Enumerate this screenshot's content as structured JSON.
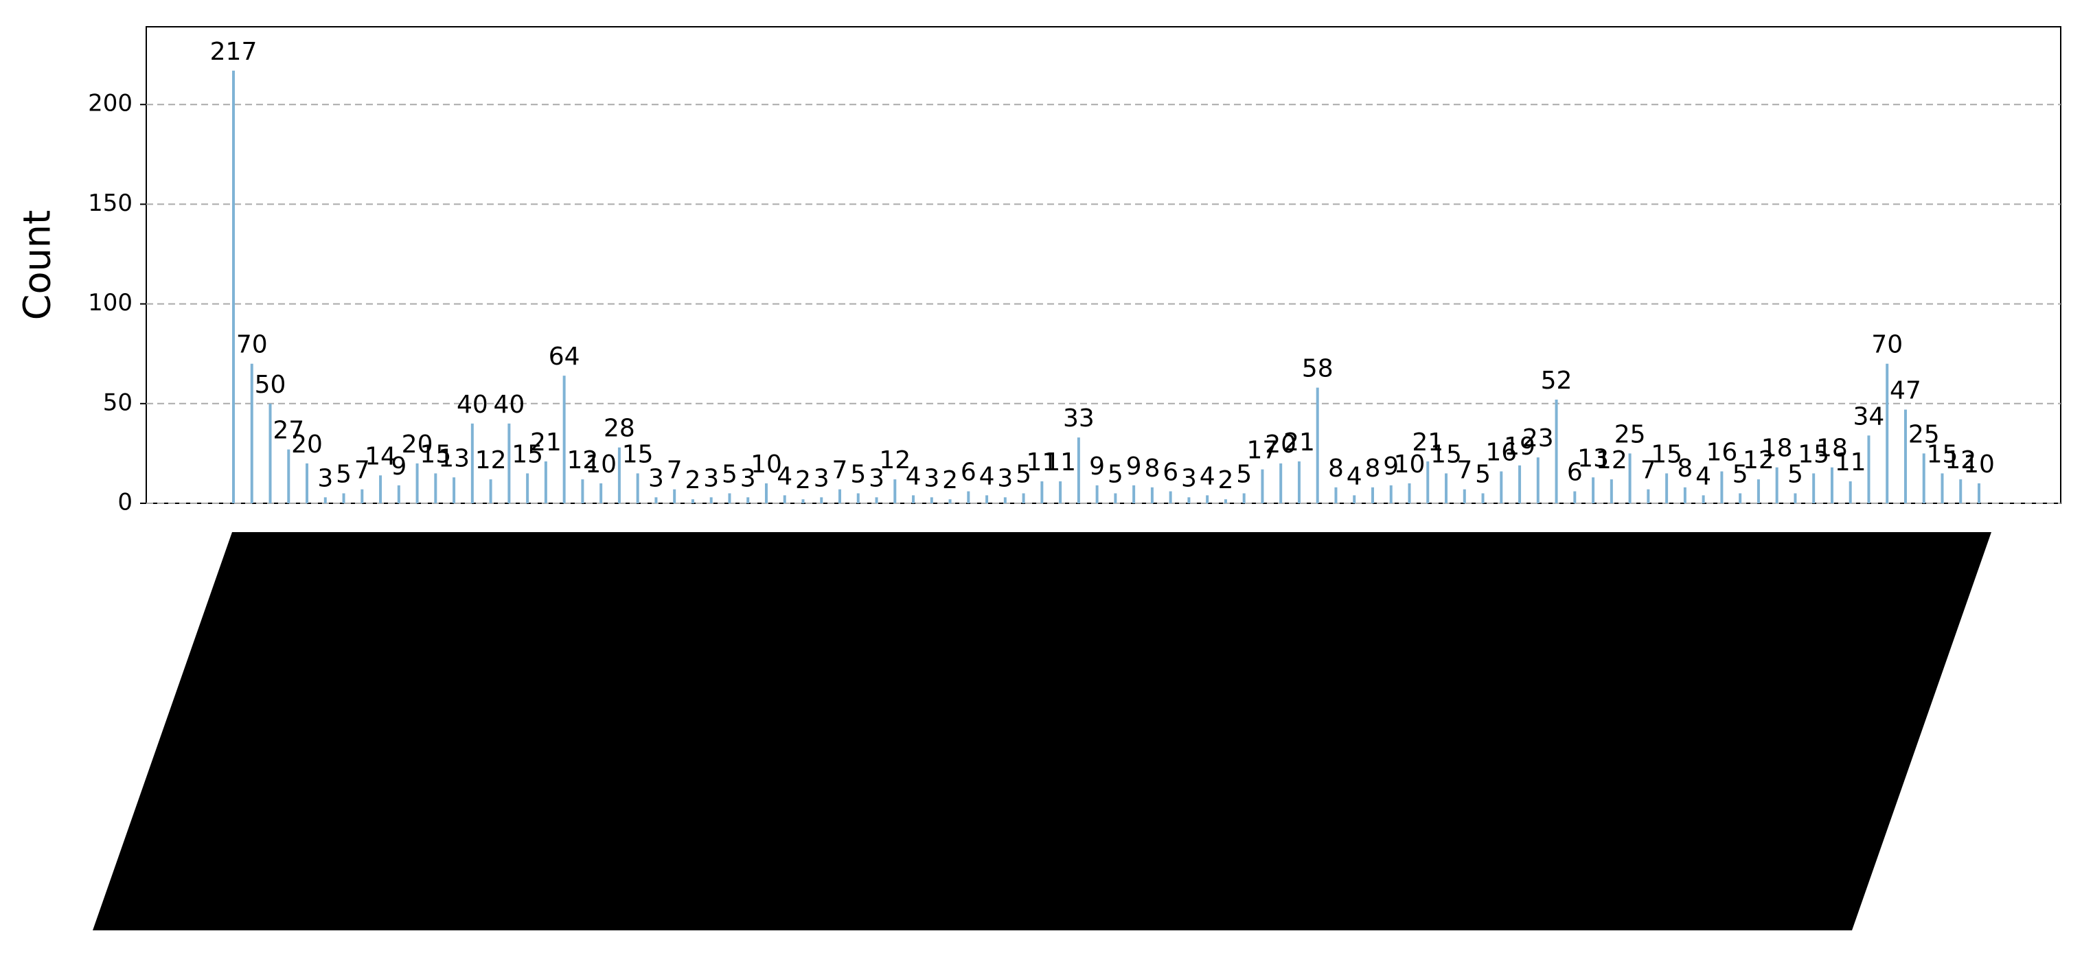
{
  "chart_data": {
    "type": "bar",
    "ylabel": "Count",
    "color": "#7fb3d5",
    "categories": [
      null,
      null,
      null,
      null,
      null,
      null,
      null,
      null,
      null,
      null,
      null,
      null,
      null,
      null,
      null,
      null,
      null,
      null,
      null,
      null,
      null,
      null,
      null,
      null,
      null,
      null,
      null,
      null,
      null,
      null,
      null,
      null,
      null,
      null,
      null,
      null,
      null,
      null,
      null,
      null,
      null,
      null,
      null,
      null,
      null,
      null,
      null,
      null,
      null,
      null,
      null,
      null,
      null,
      null,
      null,
      null,
      null,
      null,
      null,
      null,
      null,
      null,
      null,
      null,
      null,
      null,
      null,
      null,
      null,
      null,
      null,
      null,
      null,
      null,
      null,
      null,
      null,
      null,
      null,
      null,
      null,
      null,
      null,
      null,
      null,
      null,
      null,
      null,
      null,
      null,
      null,
      null,
      null,
      null,
      null,
      null
    ],
    "values": [
      217,
      70,
      50,
      27,
      20,
      3,
      5,
      7,
      14,
      9,
      20,
      15,
      13,
      40,
      12,
      40,
      15,
      21,
      64,
      12,
      10,
      28,
      15,
      3,
      7,
      2,
      3,
      5,
      3,
      10,
      4,
      2,
      3,
      7,
      5,
      3,
      12,
      4,
      3,
      2,
      6,
      4,
      3,
      5,
      11,
      11,
      33,
      9,
      5,
      9,
      8,
      6,
      3,
      4,
      2,
      5,
      17,
      20,
      21,
      58,
      8,
      4,
      8,
      9,
      10,
      21,
      15,
      7,
      5,
      16,
      19,
      23,
      52,
      6,
      13,
      12,
      25,
      7,
      15,
      8,
      4,
      16,
      5,
      12,
      18,
      5,
      15,
      18,
      11,
      34,
      70,
      47,
      25,
      15,
      12,
      10
    ],
    "ylim": [
      0,
      239
    ],
    "yticks": [
      0,
      50,
      100,
      150,
      200
    ],
    "grid": true
  }
}
